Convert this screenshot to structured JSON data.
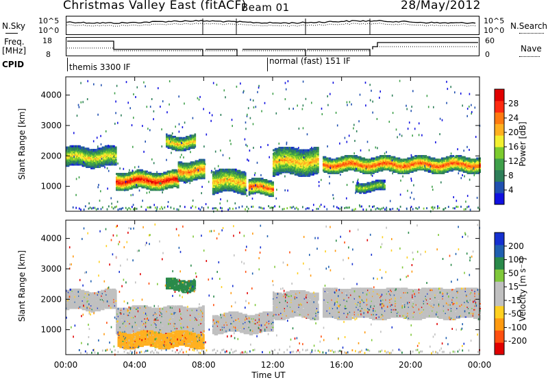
{
  "header": {
    "station": "Christmas Valley East (fitACF)",
    "beam": "Beam 01",
    "date": "28/May/2012"
  },
  "top_panels": {
    "nsky_label": "N.Sky",
    "nsearch_label": "N.Search",
    "nsky_ticks": [
      "10^5",
      "10^0"
    ],
    "nsearch_ticks": [
      "10^5",
      "10^0"
    ],
    "freq_label_1": "Freq.",
    "freq_label_2": "[MHz]",
    "freq_ticks": [
      "18",
      "8"
    ],
    "nave_label": "Nave",
    "nave_ticks": [
      "60",
      "0"
    ],
    "cpid_label": "CPID",
    "cpid_modes": [
      "themis 3300 IF",
      "normal (fast) 151 IF"
    ]
  },
  "chart_data": [
    {
      "type": "heatmap",
      "name": "power",
      "xlabel": "Time UT",
      "ylabel": "Slant Range [km]",
      "xticks": [
        "00:00",
        "04:00",
        "08:00",
        "12:00",
        "16:00",
        "20:00",
        "00:00"
      ],
      "yticks": [
        1000,
        2000,
        3000,
        4000
      ],
      "xlim": [
        0,
        24
      ],
      "ylim": [
        180,
        4600
      ],
      "colorbar": {
        "label": "Power [dB]",
        "ticks": [
          4,
          8,
          12,
          16,
          20,
          24,
          28
        ],
        "colors": [
          "#1010e0",
          "#2050b0",
          "#2e7f5a",
          "#3fa04a",
          "#7ccb2e",
          "#f3f030",
          "#ffb020",
          "#ff7a10",
          "#ff2a10",
          "#e00000"
        ]
      },
      "echo_bands": [
        {
          "t0": 0.0,
          "t1": 2.9,
          "r0": 1750,
          "r1": 2250,
          "level": 0.55
        },
        {
          "t0": 2.9,
          "t1": 6.5,
          "r0": 1000,
          "r1": 1450,
          "level": 0.85
        },
        {
          "t0": 6.5,
          "t1": 8.0,
          "r0": 1300,
          "r1": 1800,
          "level": 0.7
        },
        {
          "t0": 5.8,
          "t1": 7.5,
          "r0": 2300,
          "r1": 2650,
          "level": 0.6
        },
        {
          "t0": 8.5,
          "t1": 10.4,
          "r0": 900,
          "r1": 1500,
          "level": 0.6
        },
        {
          "t0": 10.6,
          "t1": 12.0,
          "r0": 800,
          "r1": 1200,
          "level": 0.75
        },
        {
          "t0": 12.0,
          "t1": 14.6,
          "r0": 1500,
          "r1": 2200,
          "level": 0.6
        },
        {
          "t0": 14.9,
          "t1": 24.0,
          "r0": 1550,
          "r1": 1950,
          "level": 0.75
        },
        {
          "t0": 16.8,
          "t1": 18.5,
          "r0": 900,
          "r1": 1150,
          "level": 0.45
        }
      ]
    },
    {
      "type": "heatmap",
      "name": "velocity",
      "xlabel": "Time UT",
      "ylabel": "Slant Range [km]",
      "xticks": [
        "00:00",
        "04:00",
        "08:00",
        "12:00",
        "16:00",
        "20:00",
        "00:00"
      ],
      "yticks": [
        1000,
        2000,
        3000,
        4000
      ],
      "xlim": [
        0,
        24
      ],
      "ylim": [
        180,
        4600
      ],
      "colorbar": {
        "label": "Velocity [m s⁻¹]",
        "ticks": [
          200,
          100,
          50,
          15,
          -15,
          -50,
          -100,
          -200
        ],
        "colors": [
          "#1530d0",
          "#1f5fb0",
          "#2a8a4a",
          "#7fc83a",
          "#c0c0c0",
          "#c0c0c0",
          "#ffd020",
          "#ff9a10",
          "#ff5010",
          "#e00000"
        ]
      },
      "echo_bands": [
        {
          "t0": 0.0,
          "t1": 2.9,
          "r0": 1750,
          "r1": 2250,
          "color": "#c0c0c0"
        },
        {
          "t0": 2.9,
          "t1": 8.0,
          "r0": 1000,
          "r1": 1700,
          "color": "#c0c0c0"
        },
        {
          "t0": 5.8,
          "t1": 7.5,
          "r0": 2350,
          "r1": 2650,
          "color": "#2a8a4a"
        },
        {
          "t0": 8.5,
          "t1": 12.0,
          "r0": 1000,
          "r1": 1500,
          "color": "#c0c0c0"
        },
        {
          "t0": 12.0,
          "t1": 14.6,
          "r0": 1500,
          "r1": 2200,
          "color": "#c0c0c0"
        },
        {
          "t0": 14.9,
          "t1": 24.0,
          "r0": 1500,
          "r1": 2300,
          "color": "#c0c0c0"
        },
        {
          "t0": 3.0,
          "t1": 8.0,
          "r0": 500,
          "r1": 900,
          "color": "#ffb020"
        }
      ]
    }
  ]
}
